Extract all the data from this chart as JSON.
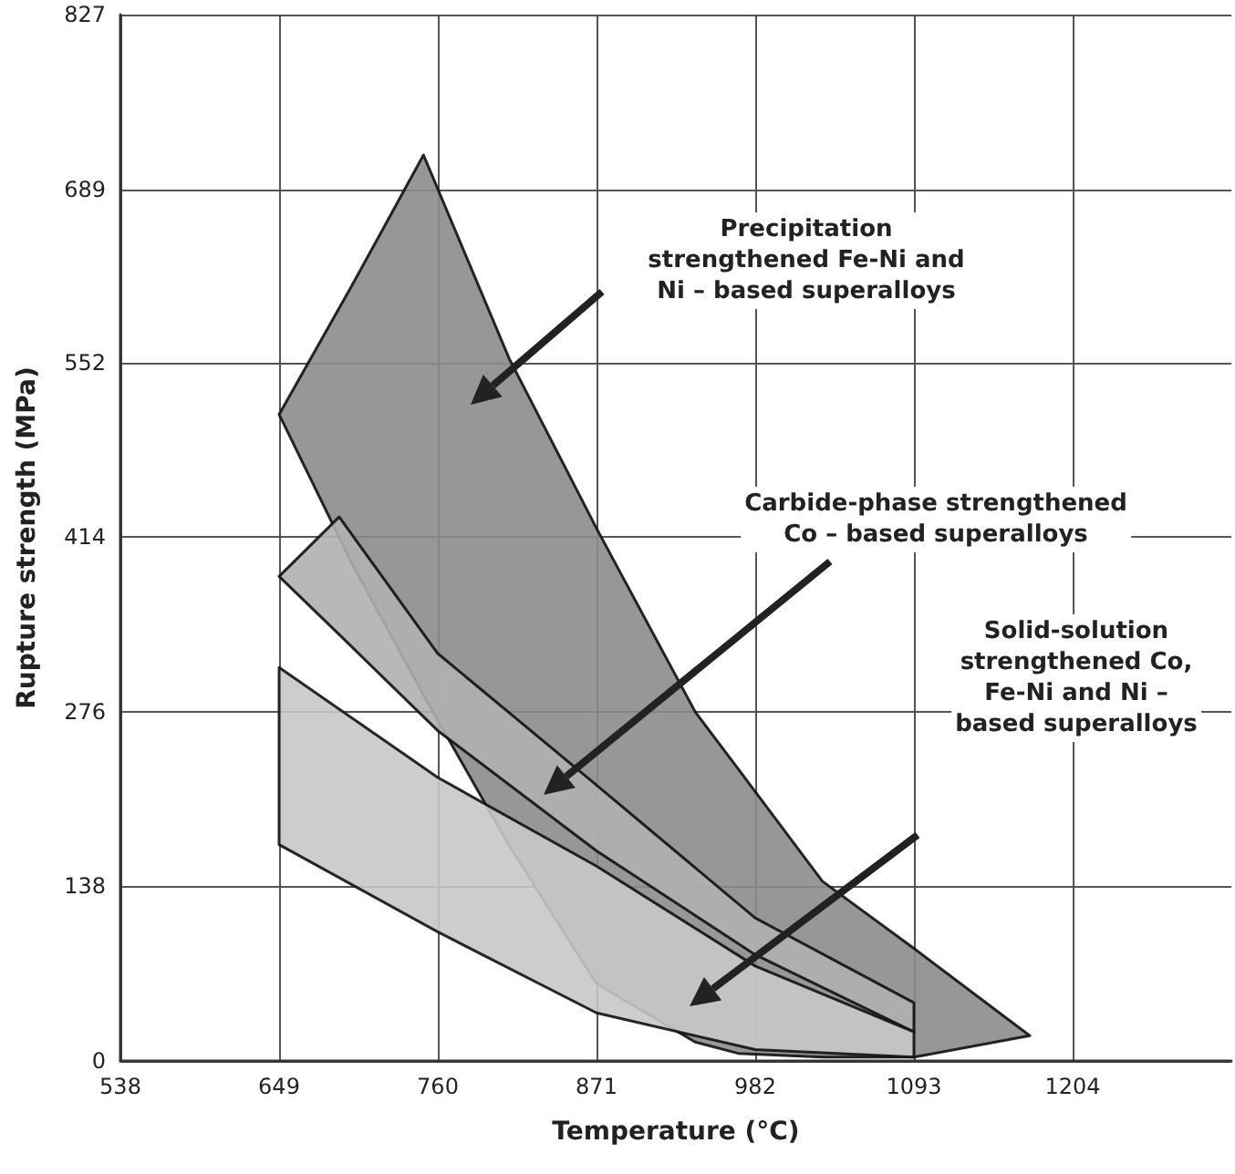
{
  "chart_data": {
    "type": "area",
    "xlabel": "Temperature (°C)",
    "ylabel": "Rupture strength (MPa)",
    "xlim": [
      538,
      1315
    ],
    "xticks": [
      538,
      649,
      760,
      871,
      982,
      1093,
      1204
    ],
    "ylim": [
      0,
      827
    ],
    "yticks": [
      0,
      138,
      276,
      414,
      552,
      689,
      827
    ],
    "grid": true,
    "series": [
      {
        "color": "#8c8c8c",
        "x": [
          649,
          700,
          750,
          810,
          871,
          940,
          970,
          1029,
          1093,
          1174
        ],
        "values": [
          null,
          null,
          null,
          null,
          null,
          null,
          null,
          null,
          null,
          null
        ],
        "upper": [
          511,
          613,
          716,
          555,
          421,
          276,
          231,
          142,
          89,
          20
        ],
        "lower": [
          511,
          393,
          289,
          170,
          61,
          15,
          6,
          3,
          3,
          20
        ]
      },
      {
        "color": "#b0b0b0",
        "x": [
          649,
          691,
          760,
          871,
          982,
          1093
        ],
        "values": [
          null,
          null,
          null,
          null,
          null,
          null
        ],
        "upper": [
          383,
          430,
          322,
          218,
          113,
          46
        ],
        "lower": [
          383,
          337,
          261,
          166,
          84,
          23
        ]
      },
      {
        "color": "#c8c8c8",
        "x": [
          649,
          760,
          871,
          982,
          1093
        ],
        "values": [
          null,
          null,
          null,
          null,
          null
        ],
        "upper": [
          311,
          224,
          154,
          75,
          23
        ],
        "lower": [
          171,
          102,
          38,
          9,
          3
        ]
      }
    ],
    "annotations": [
      "Precipitation\nstrengthened Fe-Ni and\nNi – based superalloys",
      "Carbide-phase strengthened\nCo – based superalloys",
      "Solid-solution\nstrengthened Co,\nFe-Ni and Ni –\nbased superalloys"
    ]
  }
}
